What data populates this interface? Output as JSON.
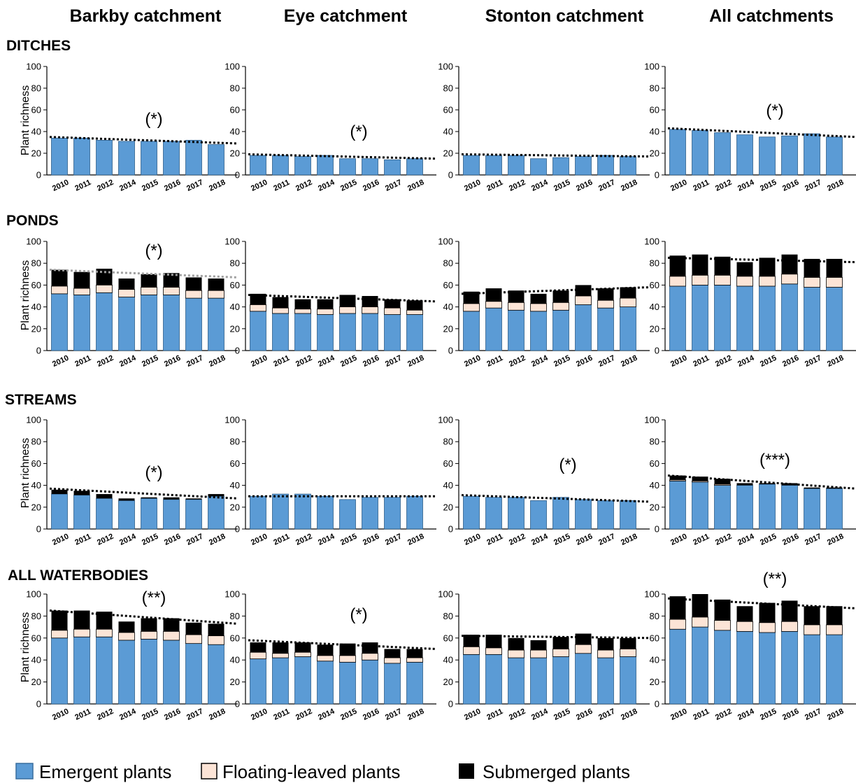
{
  "column_headers": [
    "Barkby catchment",
    "Eye catchment",
    "Stonton catchment",
    "All catchments"
  ],
  "row_headers": [
    "DITCHES",
    "PONDS",
    "STREAMS",
    "ALL WATERBODIES"
  ],
  "y_axis_label": "Plant richness",
  "legend": [
    {
      "label": "Emergent plants",
      "color": "#5b9bd5"
    },
    {
      "label": "Floating-leaved plants",
      "color": "#fce4d6"
    },
    {
      "label": "Submerged plants",
      "color": "#000000"
    }
  ],
  "colors": {
    "emergent": "#5b9bd5",
    "floating": "#fce4d6",
    "submerged": "#000000",
    "trend": "#000000",
    "trend_grey": "#a0a0a0"
  },
  "chart_data": [
    {
      "type": "bar",
      "stacked": true,
      "panel": "Barkby catchment - DITCHES",
      "categories": [
        "2010",
        "2011",
        "2012",
        "2014",
        "2015",
        "2016",
        "2017",
        "2018"
      ],
      "ylim": [
        0,
        100
      ],
      "yticks": [
        0,
        20,
        40,
        60,
        80,
        100
      ],
      "series": [
        {
          "name": "Emergent plants",
          "values": [
            34,
            34,
            32,
            31,
            31,
            31,
            32,
            28
          ]
        },
        {
          "name": "Floating-leaved plants",
          "values": [
            0,
            0,
            0,
            0,
            0,
            0,
            0,
            0
          ]
        },
        {
          "name": "Submerged plants",
          "values": [
            0,
            0,
            0,
            0,
            0,
            0,
            0,
            0
          ]
        }
      ],
      "trendline": [
        35,
        29
      ],
      "trend_color": "black",
      "annotation": "(*)"
    },
    {
      "type": "bar",
      "stacked": true,
      "panel": "Eye catchment - DITCHES",
      "categories": [
        "2010",
        "2011",
        "2012",
        "2014",
        "2015",
        "2016",
        "2017",
        "2018"
      ],
      "ylim": [
        0,
        100
      ],
      "yticks": [
        0,
        20,
        40,
        60,
        80,
        100
      ],
      "series": [
        {
          "name": "Emergent plants",
          "values": [
            18,
            18,
            17,
            18,
            15,
            15,
            14,
            15
          ]
        },
        {
          "name": "Floating-leaved plants",
          "values": [
            0,
            0,
            0,
            0,
            0,
            0,
            0,
            0
          ]
        },
        {
          "name": "Submerged plants",
          "values": [
            0,
            0,
            0,
            0,
            0,
            0,
            0,
            0
          ]
        }
      ],
      "trendline": [
        19,
        15
      ],
      "trend_color": "black",
      "annotation": "(*)"
    },
    {
      "type": "bar",
      "stacked": true,
      "panel": "Stonton catchment - DITCHES",
      "categories": [
        "2010",
        "2011",
        "2012",
        "2014",
        "2015",
        "2016",
        "2017",
        "2018"
      ],
      "ylim": [
        0,
        100
      ],
      "yticks": [
        0,
        20,
        40,
        60,
        80,
        100
      ],
      "series": [
        {
          "name": "Emergent plants",
          "values": [
            18,
            18,
            18,
            15,
            16,
            17,
            18,
            17
          ]
        },
        {
          "name": "Floating-leaved plants",
          "values": [
            0,
            0,
            0,
            0,
            0,
            0,
            0,
            0
          ]
        },
        {
          "name": "Submerged plants",
          "values": [
            0,
            0,
            0,
            0,
            0,
            0,
            0,
            0
          ]
        }
      ],
      "trendline": [
        19,
        17
      ],
      "trend_color": "black",
      "annotation": ""
    },
    {
      "type": "bar",
      "stacked": true,
      "panel": "All catchments - DITCHES",
      "categories": [
        "2010",
        "2011",
        "2012",
        "2014",
        "2015",
        "2016",
        "2017",
        "2018"
      ],
      "ylim": [
        0,
        100
      ],
      "yticks": [
        0,
        20,
        40,
        60,
        80,
        100
      ],
      "series": [
        {
          "name": "Emergent plants",
          "values": [
            42,
            41,
            39,
            37,
            35,
            36,
            38,
            35
          ]
        },
        {
          "name": "Floating-leaved plants",
          "values": [
            0,
            0,
            0,
            0,
            0,
            0,
            0,
            0
          ]
        },
        {
          "name": "Submerged plants",
          "values": [
            0,
            0,
            0,
            0,
            0,
            0,
            0,
            0
          ]
        }
      ],
      "trendline": [
        43,
        35
      ],
      "trend_color": "black",
      "annotation": "(*)"
    },
    {
      "type": "bar",
      "stacked": true,
      "panel": "Barkby catchment - PONDS",
      "categories": [
        "2010",
        "2011",
        "2012",
        "2014",
        "2015",
        "2016",
        "2017",
        "2018"
      ],
      "ylim": [
        0,
        100
      ],
      "yticks": [
        0,
        20,
        40,
        60,
        80,
        100
      ],
      "series": [
        {
          "name": "Emergent plants",
          "values": [
            52,
            51,
            53,
            49,
            51,
            51,
            48,
            48
          ]
        },
        {
          "name": "Floating-leaved plants",
          "values": [
            7,
            6,
            7,
            7,
            7,
            7,
            7,
            7
          ]
        },
        {
          "name": "Submerged plants",
          "values": [
            15,
            15,
            15,
            10,
            12,
            13,
            12,
            11
          ]
        }
      ],
      "trendline": [
        74,
        67
      ],
      "trend_color": "grey",
      "annotation": "(*)"
    },
    {
      "type": "bar",
      "stacked": true,
      "panel": "Eye catchment - PONDS",
      "categories": [
        "2010",
        "2011",
        "2012",
        "2014",
        "2015",
        "2016",
        "2017",
        "2018"
      ],
      "ylim": [
        0,
        100
      ],
      "yticks": [
        0,
        20,
        40,
        60,
        80,
        100
      ],
      "series": [
        {
          "name": "Emergent plants",
          "values": [
            36,
            34,
            34,
            33,
            34,
            34,
            33,
            33
          ]
        },
        {
          "name": "Floating-leaved plants",
          "values": [
            6,
            5,
            4,
            5,
            6,
            6,
            6,
            4
          ]
        },
        {
          "name": "Submerged plants",
          "values": [
            10,
            10,
            9,
            9,
            11,
            10,
            8,
            9
          ]
        }
      ],
      "trendline": [
        51,
        45
      ],
      "trend_color": "black",
      "annotation": ""
    },
    {
      "type": "bar",
      "stacked": true,
      "panel": "Stonton catchment - PONDS",
      "categories": [
        "2010",
        "2011",
        "2012",
        "2014",
        "2015",
        "2016",
        "2017",
        "2018"
      ],
      "ylim": [
        0,
        100
      ],
      "yticks": [
        0,
        20,
        40,
        60,
        80,
        100
      ],
      "series": [
        {
          "name": "Emergent plants",
          "values": [
            36,
            39,
            37,
            36,
            37,
            42,
            39,
            40
          ]
        },
        {
          "name": "Floating-leaved plants",
          "values": [
            7,
            6,
            7,
            7,
            7,
            8,
            7,
            8
          ]
        },
        {
          "name": "Submerged plants",
          "values": [
            11,
            12,
            11,
            9,
            11,
            10,
            11,
            10
          ]
        }
      ],
      "trendline": [
        52,
        58
      ],
      "trend_color": "black",
      "annotation": ""
    },
    {
      "type": "bar",
      "stacked": true,
      "panel": "All catchments - PONDS",
      "categories": [
        "2010",
        "2011",
        "2012",
        "2014",
        "2015",
        "2016",
        "2017",
        "2018"
      ],
      "ylim": [
        0,
        100
      ],
      "yticks": [
        0,
        20,
        40,
        60,
        80,
        100
      ],
      "series": [
        {
          "name": "Emergent plants",
          "values": [
            59,
            60,
            60,
            59,
            59,
            61,
            58,
            58
          ]
        },
        {
          "name": "Floating-leaved plants",
          "values": [
            9,
            9,
            9,
            9,
            9,
            9,
            9,
            9
          ]
        },
        {
          "name": "Submerged plants",
          "values": [
            19,
            19,
            17,
            13,
            17,
            18,
            17,
            17
          ]
        }
      ],
      "trendline": [
        85,
        81
      ],
      "trend_color": "black",
      "annotation": ""
    },
    {
      "type": "bar",
      "stacked": true,
      "panel": "Barkby catchment - STREAMS",
      "categories": [
        "2010",
        "2011",
        "2012",
        "2014",
        "2015",
        "2016",
        "2017",
        "2018"
      ],
      "ylim": [
        0,
        100
      ],
      "yticks": [
        0,
        20,
        40,
        60,
        80,
        100
      ],
      "series": [
        {
          "name": "Emergent plants",
          "values": [
            32,
            31,
            28,
            26,
            28,
            27,
            27,
            30
          ]
        },
        {
          "name": "Floating-leaved plants",
          "values": [
            0,
            0,
            0,
            0,
            0,
            0,
            0,
            0
          ]
        },
        {
          "name": "Submerged plants",
          "values": [
            4,
            4,
            4,
            2,
            1,
            2,
            1,
            2
          ]
        }
      ],
      "trendline": [
        37,
        28
      ],
      "trend_color": "black",
      "annotation": "(*)"
    },
    {
      "type": "bar",
      "stacked": true,
      "panel": "Eye catchment - STREAMS",
      "categories": [
        "2010",
        "2011",
        "2012",
        "2014",
        "2015",
        "2016",
        "2017",
        "2018"
      ],
      "ylim": [
        0,
        100
      ],
      "yticks": [
        0,
        20,
        40,
        60,
        80,
        100
      ],
      "series": [
        {
          "name": "Emergent plants",
          "values": [
            30,
            32,
            32,
            30,
            27,
            29,
            29,
            30
          ]
        },
        {
          "name": "Floating-leaved plants",
          "values": [
            0,
            0,
            0,
            0,
            0,
            0,
            0,
            0
          ]
        },
        {
          "name": "Submerged plants",
          "values": [
            0,
            0,
            0,
            0,
            0,
            0,
            0,
            0
          ]
        }
      ],
      "trendline": [
        30,
        30
      ],
      "trend_color": "black",
      "annotation": ""
    },
    {
      "type": "bar",
      "stacked": true,
      "panel": "Stonton catchment - STREAMS",
      "categories": [
        "2010",
        "2011",
        "2012",
        "2014",
        "2015",
        "2016",
        "2017",
        "2018"
      ],
      "ylim": [
        0,
        100
      ],
      "yticks": [
        0,
        20,
        40,
        60,
        80,
        100
      ],
      "series": [
        {
          "name": "Emergent plants",
          "values": [
            30,
            29,
            29,
            26,
            29,
            27,
            26,
            26
          ]
        },
        {
          "name": "Floating-leaved plants",
          "values": [
            0,
            0,
            0,
            0,
            0,
            0,
            0,
            0
          ]
        },
        {
          "name": "Submerged plants",
          "values": [
            0,
            0,
            0,
            0,
            0,
            0,
            0,
            0
          ]
        }
      ],
      "trendline": [
        31,
        25
      ],
      "trend_color": "black",
      "annotation": "(*)"
    },
    {
      "type": "bar",
      "stacked": true,
      "panel": "All catchments - STREAMS",
      "categories": [
        "2010",
        "2011",
        "2012",
        "2014",
        "2015",
        "2016",
        "2017",
        "2018"
      ],
      "ylim": [
        0,
        100
      ],
      "yticks": [
        0,
        20,
        40,
        60,
        80,
        100
      ],
      "series": [
        {
          "name": "Emergent plants",
          "values": [
            44,
            43,
            40,
            40,
            41,
            40,
            37,
            37
          ]
        },
        {
          "name": "Floating-leaved plants",
          "values": [
            1,
            1,
            1,
            0,
            0,
            0,
            0,
            0
          ]
        },
        {
          "name": "Submerged plants",
          "values": [
            4,
            4,
            5,
            2,
            1,
            2,
            1,
            1
          ]
        }
      ],
      "trendline": [
        49,
        37
      ],
      "trend_color": "black",
      "annotation": "(***)"
    },
    {
      "type": "bar",
      "stacked": true,
      "panel": "Barkby catchment - ALL WATERBODIES",
      "categories": [
        "2010",
        "2011",
        "2012",
        "2014",
        "2015",
        "2016",
        "2017",
        "2018"
      ],
      "ylim": [
        0,
        100
      ],
      "yticks": [
        0,
        20,
        40,
        60,
        80,
        100
      ],
      "series": [
        {
          "name": "Emergent plants",
          "values": [
            60,
            61,
            61,
            58,
            59,
            58,
            55,
            54
          ]
        },
        {
          "name": "Floating-leaved plants",
          "values": [
            7,
            7,
            7,
            7,
            7,
            8,
            8,
            8
          ]
        },
        {
          "name": "Submerged plants",
          "values": [
            18,
            17,
            16,
            10,
            12,
            12,
            11,
            11
          ]
        }
      ],
      "trendline": [
        85,
        73
      ],
      "trend_color": "black",
      "annotation": "(**)"
    },
    {
      "type": "bar",
      "stacked": true,
      "panel": "Eye catchment - ALL WATERBODIES",
      "categories": [
        "2010",
        "2011",
        "2012",
        "2014",
        "2015",
        "2016",
        "2017",
        "2018"
      ],
      "ylim": [
        0,
        100
      ],
      "yticks": [
        0,
        20,
        40,
        60,
        80,
        100
      ],
      "series": [
        {
          "name": "Emergent plants",
          "values": [
            41,
            42,
            43,
            39,
            38,
            40,
            37,
            38
          ]
        },
        {
          "name": "Floating-leaved plants",
          "values": [
            6,
            4,
            4,
            5,
            6,
            6,
            5,
            4
          ]
        },
        {
          "name": "Submerged plants",
          "values": [
            9,
            10,
            9,
            10,
            11,
            10,
            8,
            8
          ]
        }
      ],
      "trendline": [
        58,
        50
      ],
      "trend_color": "black",
      "annotation": "(*)"
    },
    {
      "type": "bar",
      "stacked": true,
      "panel": "Stonton catchment - ALL WATERBODIES",
      "categories": [
        "2010",
        "2011",
        "2012",
        "2014",
        "2015",
        "2016",
        "2017",
        "2018"
      ],
      "ylim": [
        0,
        100
      ],
      "yticks": [
        0,
        20,
        40,
        60,
        80,
        100
      ],
      "series": [
        {
          "name": "Emergent plants",
          "values": [
            45,
            45,
            42,
            42,
            43,
            46,
            42,
            43
          ]
        },
        {
          "name": "Floating-leaved plants",
          "values": [
            7,
            6,
            7,
            7,
            7,
            8,
            7,
            7
          ]
        },
        {
          "name": "Submerged plants",
          "values": [
            11,
            12,
            11,
            9,
            11,
            10,
            11,
            10
          ]
        }
      ],
      "trendline": [
        62,
        60
      ],
      "trend_color": "black",
      "annotation": ""
    },
    {
      "type": "bar",
      "stacked": true,
      "panel": "All catchments - ALL WATERBODIES",
      "categories": [
        "2010",
        "2011",
        "2012",
        "2014",
        "2015",
        "2016",
        "2017",
        "2018"
      ],
      "ylim": [
        0,
        100
      ],
      "yticks": [
        0,
        20,
        40,
        60,
        80,
        100
      ],
      "series": [
        {
          "name": "Emergent plants",
          "values": [
            68,
            70,
            67,
            66,
            65,
            66,
            63,
            63
          ]
        },
        {
          "name": "Floating-leaved plants",
          "values": [
            9,
            9,
            9,
            9,
            9,
            9,
            9,
            9
          ]
        },
        {
          "name": "Submerged plants",
          "values": [
            21,
            21,
            19,
            14,
            18,
            19,
            17,
            17
          ]
        }
      ],
      "trendline": [
        96,
        87
      ],
      "trend_color": "black",
      "annotation": "(**)"
    }
  ]
}
